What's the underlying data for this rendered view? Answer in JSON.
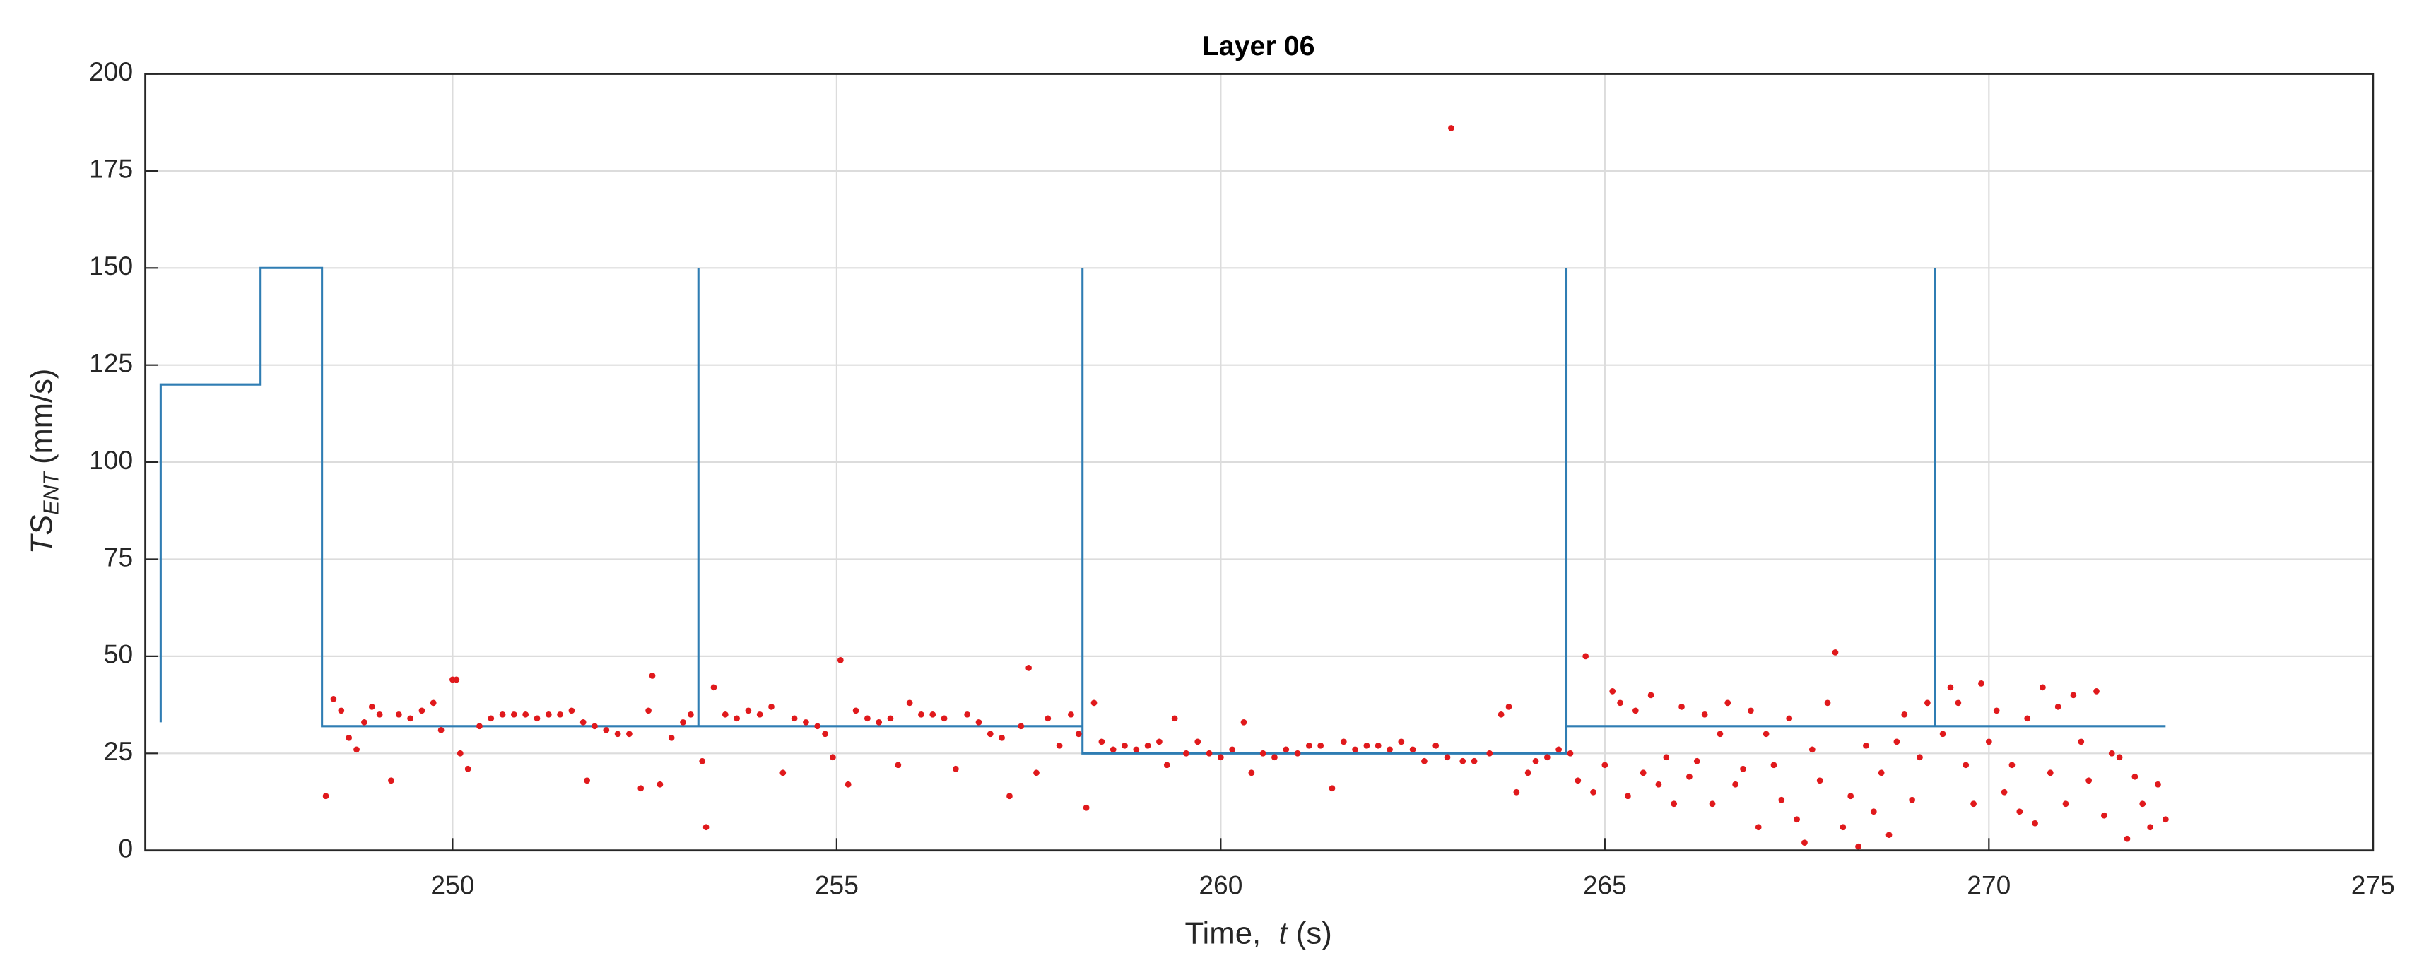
{
  "chart_data": {
    "type": "scatter",
    "title": "Layer 06",
    "xlabel": [
      "Time,",
      "t",
      "(s)"
    ],
    "ylabel": [
      "TS",
      "ENT",
      "(mm/s)"
    ],
    "xlim": [
      246,
      275
    ],
    "ylim": [
      0,
      200
    ],
    "xticks": [
      250,
      255,
      260,
      265,
      270,
      275
    ],
    "yticks": [
      0,
      25,
      50,
      75,
      100,
      125,
      150,
      175,
      200
    ],
    "grid": true,
    "series": [
      {
        "type": "line",
        "color": "#2f7db3",
        "x": [
          246.2,
          246.2,
          247.5,
          247.5,
          248.3,
          248.3,
          253.2,
          253.2,
          253.2,
          258.2,
          258.2,
          258.2,
          264.5,
          264.5,
          264.5,
          269.3,
          269.3,
          269.3,
          272.3
        ],
        "values": [
          33,
          120,
          120,
          150,
          150,
          32,
          32,
          150,
          32,
          32,
          150,
          25,
          25,
          150,
          32,
          32,
          150,
          32,
          32
        ]
      },
      {
        "type": "scatter",
        "color": "#e0191c",
        "x": [
          248.35,
          248.45,
          248.55,
          248.65,
          248.75,
          248.85,
          248.95,
          249.05,
          249.2,
          249.3,
          249.45,
          249.6,
          249.75,
          249.85,
          250.0,
          250.05,
          250.1,
          250.2,
          250.35,
          250.5,
          250.65,
          250.8,
          250.95,
          251.1,
          251.25,
          251.4,
          251.55,
          251.7,
          251.75,
          251.85,
          252.0,
          252.15,
          252.3,
          252.45,
          252.55,
          252.6,
          252.7,
          252.85,
          253.0,
          253.1,
          253.25,
          253.3,
          253.4,
          253.55,
          253.7,
          253.85,
          254.0,
          254.15,
          254.3,
          254.45,
          254.6,
          254.75,
          254.85,
          254.95,
          255.05,
          255.15,
          255.25,
          255.4,
          255.55,
          255.7,
          255.8,
          255.95,
          256.1,
          256.25,
          256.4,
          256.55,
          256.7,
          256.85,
          257.0,
          257.15,
          257.25,
          257.4,
          257.5,
          257.6,
          257.75,
          257.9,
          258.05,
          258.15,
          258.25,
          258.35,
          258.45,
          258.6,
          258.75,
          258.9,
          259.05,
          259.2,
          259.3,
          259.4,
          259.55,
          259.7,
          259.85,
          260.0,
          260.15,
          260.3,
          260.4,
          260.55,
          260.7,
          260.85,
          261.0,
          261.15,
          261.3,
          261.45,
          261.6,
          261.75,
          261.9,
          262.05,
          262.2,
          262.35,
          262.5,
          262.65,
          262.8,
          262.95,
          263.0,
          263.15,
          263.3,
          263.5,
          263.65,
          263.75,
          263.85,
          264.0,
          264.1,
          264.25,
          264.4,
          264.55,
          264.65,
          264.75,
          264.85,
          265.0,
          265.1,
          265.2,
          265.3,
          265.4,
          265.5,
          265.6,
          265.7,
          265.8,
          265.9,
          266.0,
          266.1,
          266.2,
          266.3,
          266.4,
          266.5,
          266.6,
          266.7,
          266.8,
          266.9,
          267.0,
          267.1,
          267.2,
          267.3,
          267.4,
          267.5,
          267.6,
          267.7,
          267.8,
          267.9,
          268.0,
          268.1,
          268.2,
          268.3,
          268.4,
          268.5,
          268.6,
          268.7,
          268.8,
          268.9,
          269.0,
          269.1,
          269.2,
          269.4,
          269.5,
          269.6,
          269.7,
          269.8,
          269.9,
          270.0,
          270.1,
          270.2,
          270.3,
          270.4,
          270.5,
          270.6,
          270.7,
          270.8,
          270.9,
          271.0,
          271.1,
          271.2,
          271.3,
          271.4,
          271.5,
          271.6,
          271.7,
          271.8,
          271.9,
          272.0,
          272.1,
          272.2,
          272.3
        ],
        "values": [
          14,
          39,
          36,
          29,
          26,
          33,
          37,
          35,
          18,
          35,
          34,
          36,
          38,
          31,
          44,
          44,
          25,
          21,
          32,
          34,
          35,
          35,
          35,
          34,
          35,
          35,
          36,
          33,
          18,
          32,
          31,
          30,
          30,
          16,
          36,
          45,
          17,
          29,
          33,
          35,
          23,
          6,
          42,
          35,
          34,
          36,
          35,
          37,
          20,
          34,
          33,
          32,
          30,
          24,
          49,
          17,
          36,
          34,
          33,
          34,
          22,
          38,
          35,
          35,
          34,
          21,
          35,
          33,
          30,
          29,
          14,
          32,
          47,
          20,
          34,
          27,
          35,
          30,
          11,
          38,
          28,
          26,
          27,
          26,
          27,
          28,
          22,
          34,
          25,
          28,
          25,
          24,
          26,
          33,
          20,
          25,
          24,
          26,
          25,
          27,
          27,
          16,
          28,
          26,
          27,
          27,
          26,
          28,
          26,
          23,
          27,
          24,
          186,
          23,
          23,
          25,
          35,
          37,
          15,
          20,
          23,
          24,
          26,
          25,
          18,
          50,
          15,
          22,
          41,
          38,
          14,
          36,
          20,
          40,
          17,
          24,
          12,
          37,
          19,
          23,
          35,
          12,
          30,
          38,
          17,
          21,
          36,
          6,
          30,
          22,
          13,
          34,
          8,
          2,
          26,
          18,
          38,
          51,
          6,
          14,
          1,
          27,
          10,
          20,
          4,
          28,
          35,
          13,
          24,
          38,
          30,
          42,
          38,
          22,
          12,
          43,
          28,
          36,
          15,
          22,
          10,
          34,
          7,
          42,
          20,
          37,
          12,
          40,
          28,
          18,
          41,
          9,
          25,
          24,
          3,
          19,
          12,
          6,
          17,
          8
        ]
      }
    ]
  }
}
